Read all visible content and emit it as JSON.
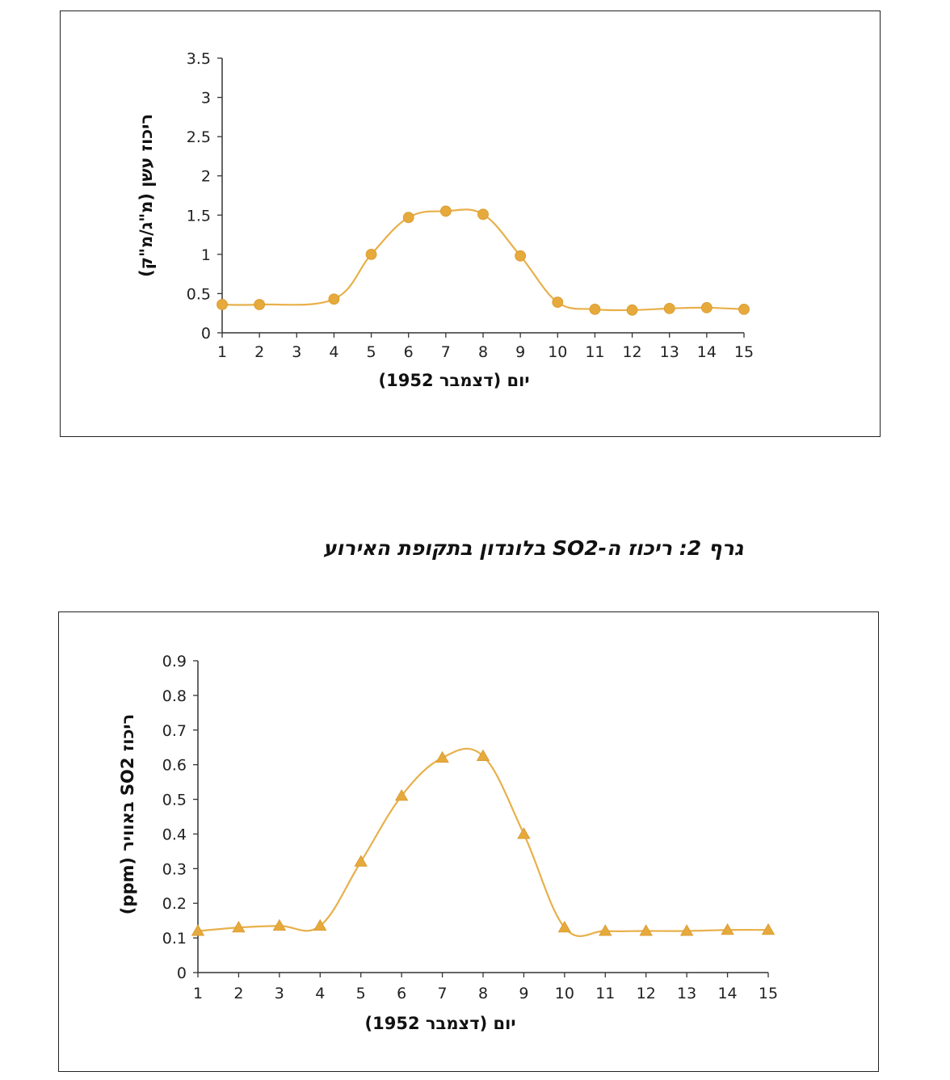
{
  "caption": "גרף 2: ריכוז ה-SO2 בלונדון בתקופת האירוע",
  "colors": {
    "line": "#e8b04a",
    "marker": "#e6a93c",
    "axis": "#333333"
  },
  "chart_data": [
    {
      "type": "line",
      "title": "",
      "xlabel": "יום (דצמבר 1952)",
      "ylabel": "ריכוז עשן (מ\"ג/מ\"ק)",
      "marker": "circle",
      "categories": [
        "1",
        "2",
        "3",
        "4",
        "5",
        "6",
        "7",
        "8",
        "9",
        "10",
        "11",
        "12",
        "13",
        "14",
        "15"
      ],
      "ylim": [
        0,
        3.5
      ],
      "yticks": [
        "0",
        "0.5",
        "1",
        "1.5",
        "2",
        "2.5",
        "3",
        "3.5"
      ],
      "grid": false,
      "series": [
        {
          "name": "",
          "points": [
            [
              1,
              0.36
            ],
            [
              2,
              0.36
            ],
            [
              4,
              0.43
            ],
            [
              5,
              1.0
            ],
            [
              6,
              1.47
            ],
            [
              7,
              1.55
            ],
            [
              8,
              1.51
            ],
            [
              9,
              0.98
            ],
            [
              10,
              0.39
            ],
            [
              11,
              0.3
            ],
            [
              12,
              0.29
            ],
            [
              13,
              0.31
            ],
            [
              14,
              0.32
            ],
            [
              15,
              0.3
            ]
          ]
        }
      ]
    },
    {
      "type": "line",
      "title": "",
      "xlabel": "יום (דצמבר 1952)",
      "ylabel": "ריכוז SO2 באוויר (ppm)",
      "marker": "triangle",
      "categories": [
        "1",
        "2",
        "3",
        "4",
        "5",
        "6",
        "7",
        "8",
        "9",
        "10",
        "11",
        "12",
        "13",
        "14",
        "15"
      ],
      "ylim": [
        0,
        0.9
      ],
      "yticks": [
        "0",
        "0.1",
        "0.2",
        "0.3",
        "0.4",
        "0.5",
        "0.6",
        "0.7",
        "0.8",
        "0.9"
      ],
      "grid": false,
      "series": [
        {
          "name": "",
          "points": [
            [
              1,
              0.12
            ],
            [
              2,
              0.13
            ],
            [
              3,
              0.135
            ],
            [
              4,
              0.135
            ],
            [
              5,
              0.32
            ],
            [
              6,
              0.51
            ],
            [
              7,
              0.62
            ],
            [
              8,
              0.625
            ],
            [
              9,
              0.4
            ],
            [
              10,
              0.13
            ],
            [
              11,
              0.12
            ],
            [
              12,
              0.12
            ],
            [
              13,
              0.12
            ],
            [
              14,
              0.123
            ],
            [
              15,
              0.123
            ]
          ]
        }
      ]
    }
  ]
}
